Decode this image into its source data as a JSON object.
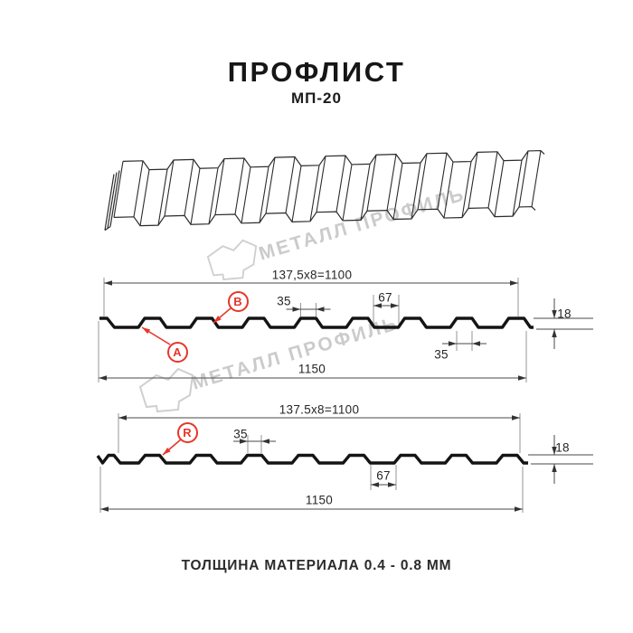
{
  "header": {
    "title": "ПРОФЛИСТ",
    "subtitle": "МП-20"
  },
  "watermark": {
    "text": "МЕТАЛЛ ПРОФИЛЬ",
    "color": "#cbcbcb",
    "logo": "metall-profil-logo"
  },
  "colors": {
    "accent_red": "#e8352a",
    "profile_line": "#141414",
    "dimension_line": "#4a4a4a"
  },
  "sections": {
    "section_ab": {
      "labels": {
        "a": "A",
        "b": "B"
      },
      "dims": {
        "module": "137,5x8=1100",
        "rib_top": "35",
        "flat": "67",
        "height": "18",
        "rib_bottom": "35",
        "overall": "1150"
      }
    },
    "section_r": {
      "labels": {
        "r": "R"
      },
      "dims": {
        "module": "137.5x8=1100",
        "rib_top": "35",
        "flat": "67",
        "height": "18",
        "overall": "1150"
      }
    }
  },
  "footer": {
    "text": "ТОЛЩИНА МАТЕРИАЛА 0.4 - 0.8 ММ"
  }
}
